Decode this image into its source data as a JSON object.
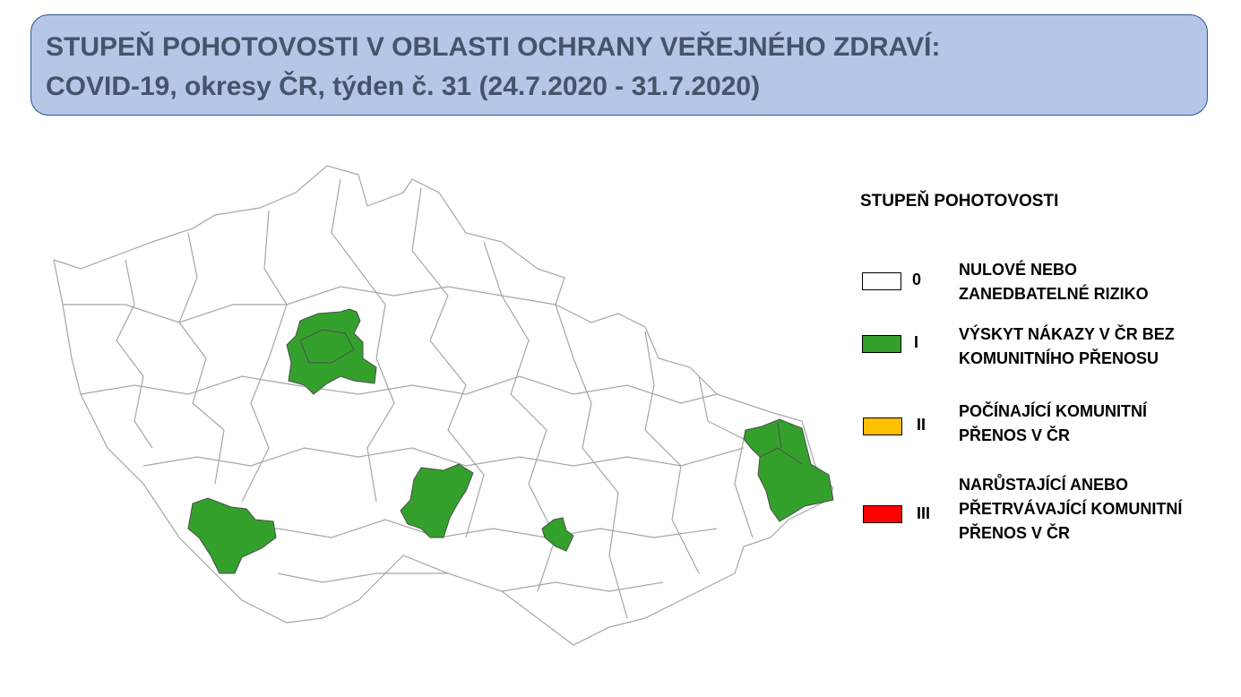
{
  "title": {
    "line1": "STUPEŇ POHOTOVOSTI V OBLASTI OCHRANY VEŘEJNÉHO ZDRAVÍ:",
    "line2": "COVID-19, okresy ČR, týden č. 31 (24.7.2020 - 31.7.2020)"
  },
  "map": {
    "highlighted_level": "I",
    "base_fill": "#ffffff",
    "border_color": "#a6a6a6"
  },
  "legend": {
    "title": "STUPEŇ POHOTOVOSTI",
    "items": [
      {
        "level": "0",
        "line1": "NULOVÉ NEBO",
        "line2": "ZANEDBATELNÉ RIZIKO",
        "line3": "",
        "color": "#ffffff"
      },
      {
        "level": "I",
        "line1": "VÝSKYT NÁKAZY V ČR BEZ",
        "line2": "KOMUNITNÍHO PŘENOSU",
        "line3": "",
        "color": "#33a02c"
      },
      {
        "level": "II",
        "line1": "POČÍNAJÍCÍ KOMUNITNÍ",
        "line2": "PŘENOS V ČR",
        "line3": "",
        "color": "#ffc000"
      },
      {
        "level": "III",
        "line1": "NARŮSTAJÍCÍ ANEBO",
        "line2": "PŘETRVÁVAJÍCÍ KOMUNITNÍ",
        "line3": "PŘENOS V ČR",
        "color": "#ff0000"
      }
    ]
  }
}
